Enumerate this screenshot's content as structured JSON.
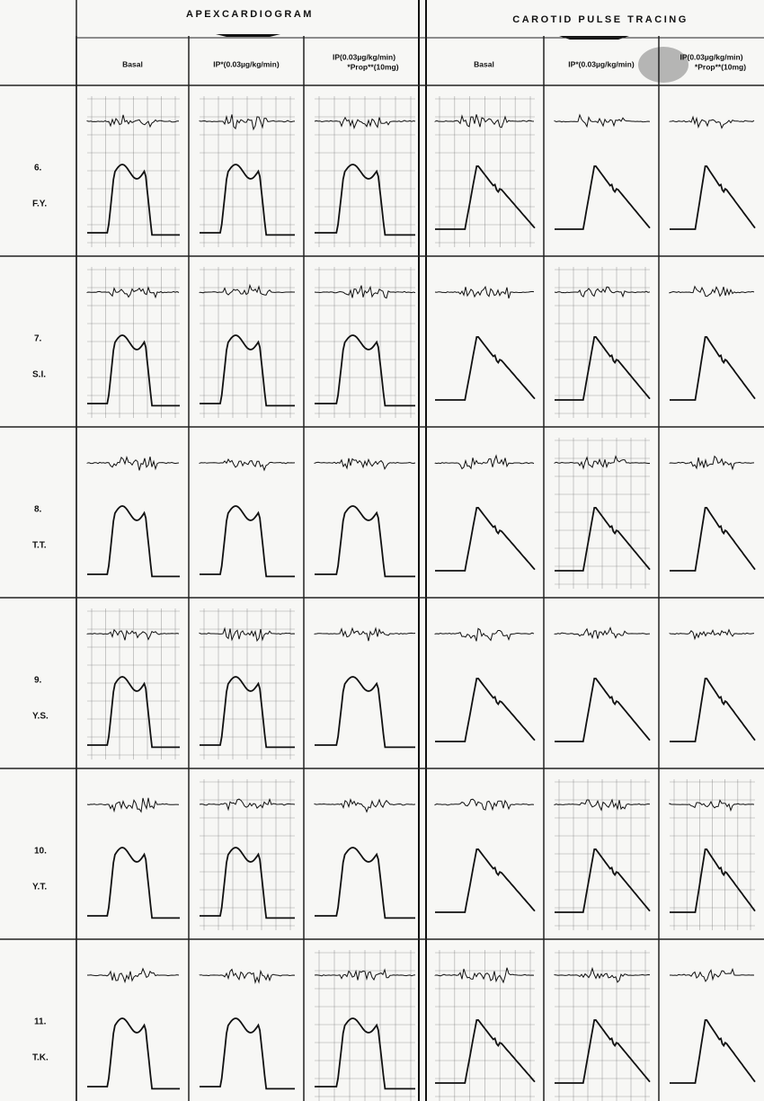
{
  "header": {
    "apex": {
      "title": "APEXCARDIOGRAM",
      "columns": [
        [
          "Basal"
        ],
        [
          "IP*(0.03µg/kg/min)"
        ],
        [
          "IP(0.03µg/kg/min)",
          "*Prop**(10mg)"
        ]
      ]
    },
    "carotid": {
      "title": "CAROTID PULSE TRACING",
      "columns": [
        [
          "Basal"
        ],
        [
          "IP*(0.03µg/kg/min)"
        ],
        [
          "IP(0.03µg/kg/min)",
          "*Prop**(10mg)"
        ]
      ]
    }
  },
  "rows": [
    {
      "number": "6.",
      "initials": "F.Y."
    },
    {
      "number": "7.",
      "initials": "S.I."
    },
    {
      "number": "8.",
      "initials": "T.T."
    },
    {
      "number": "9.",
      "initials": "Y.S."
    },
    {
      "number": "10.",
      "initials": "Y.T."
    },
    {
      "number": "11.",
      "initials": "T.K."
    }
  ]
}
